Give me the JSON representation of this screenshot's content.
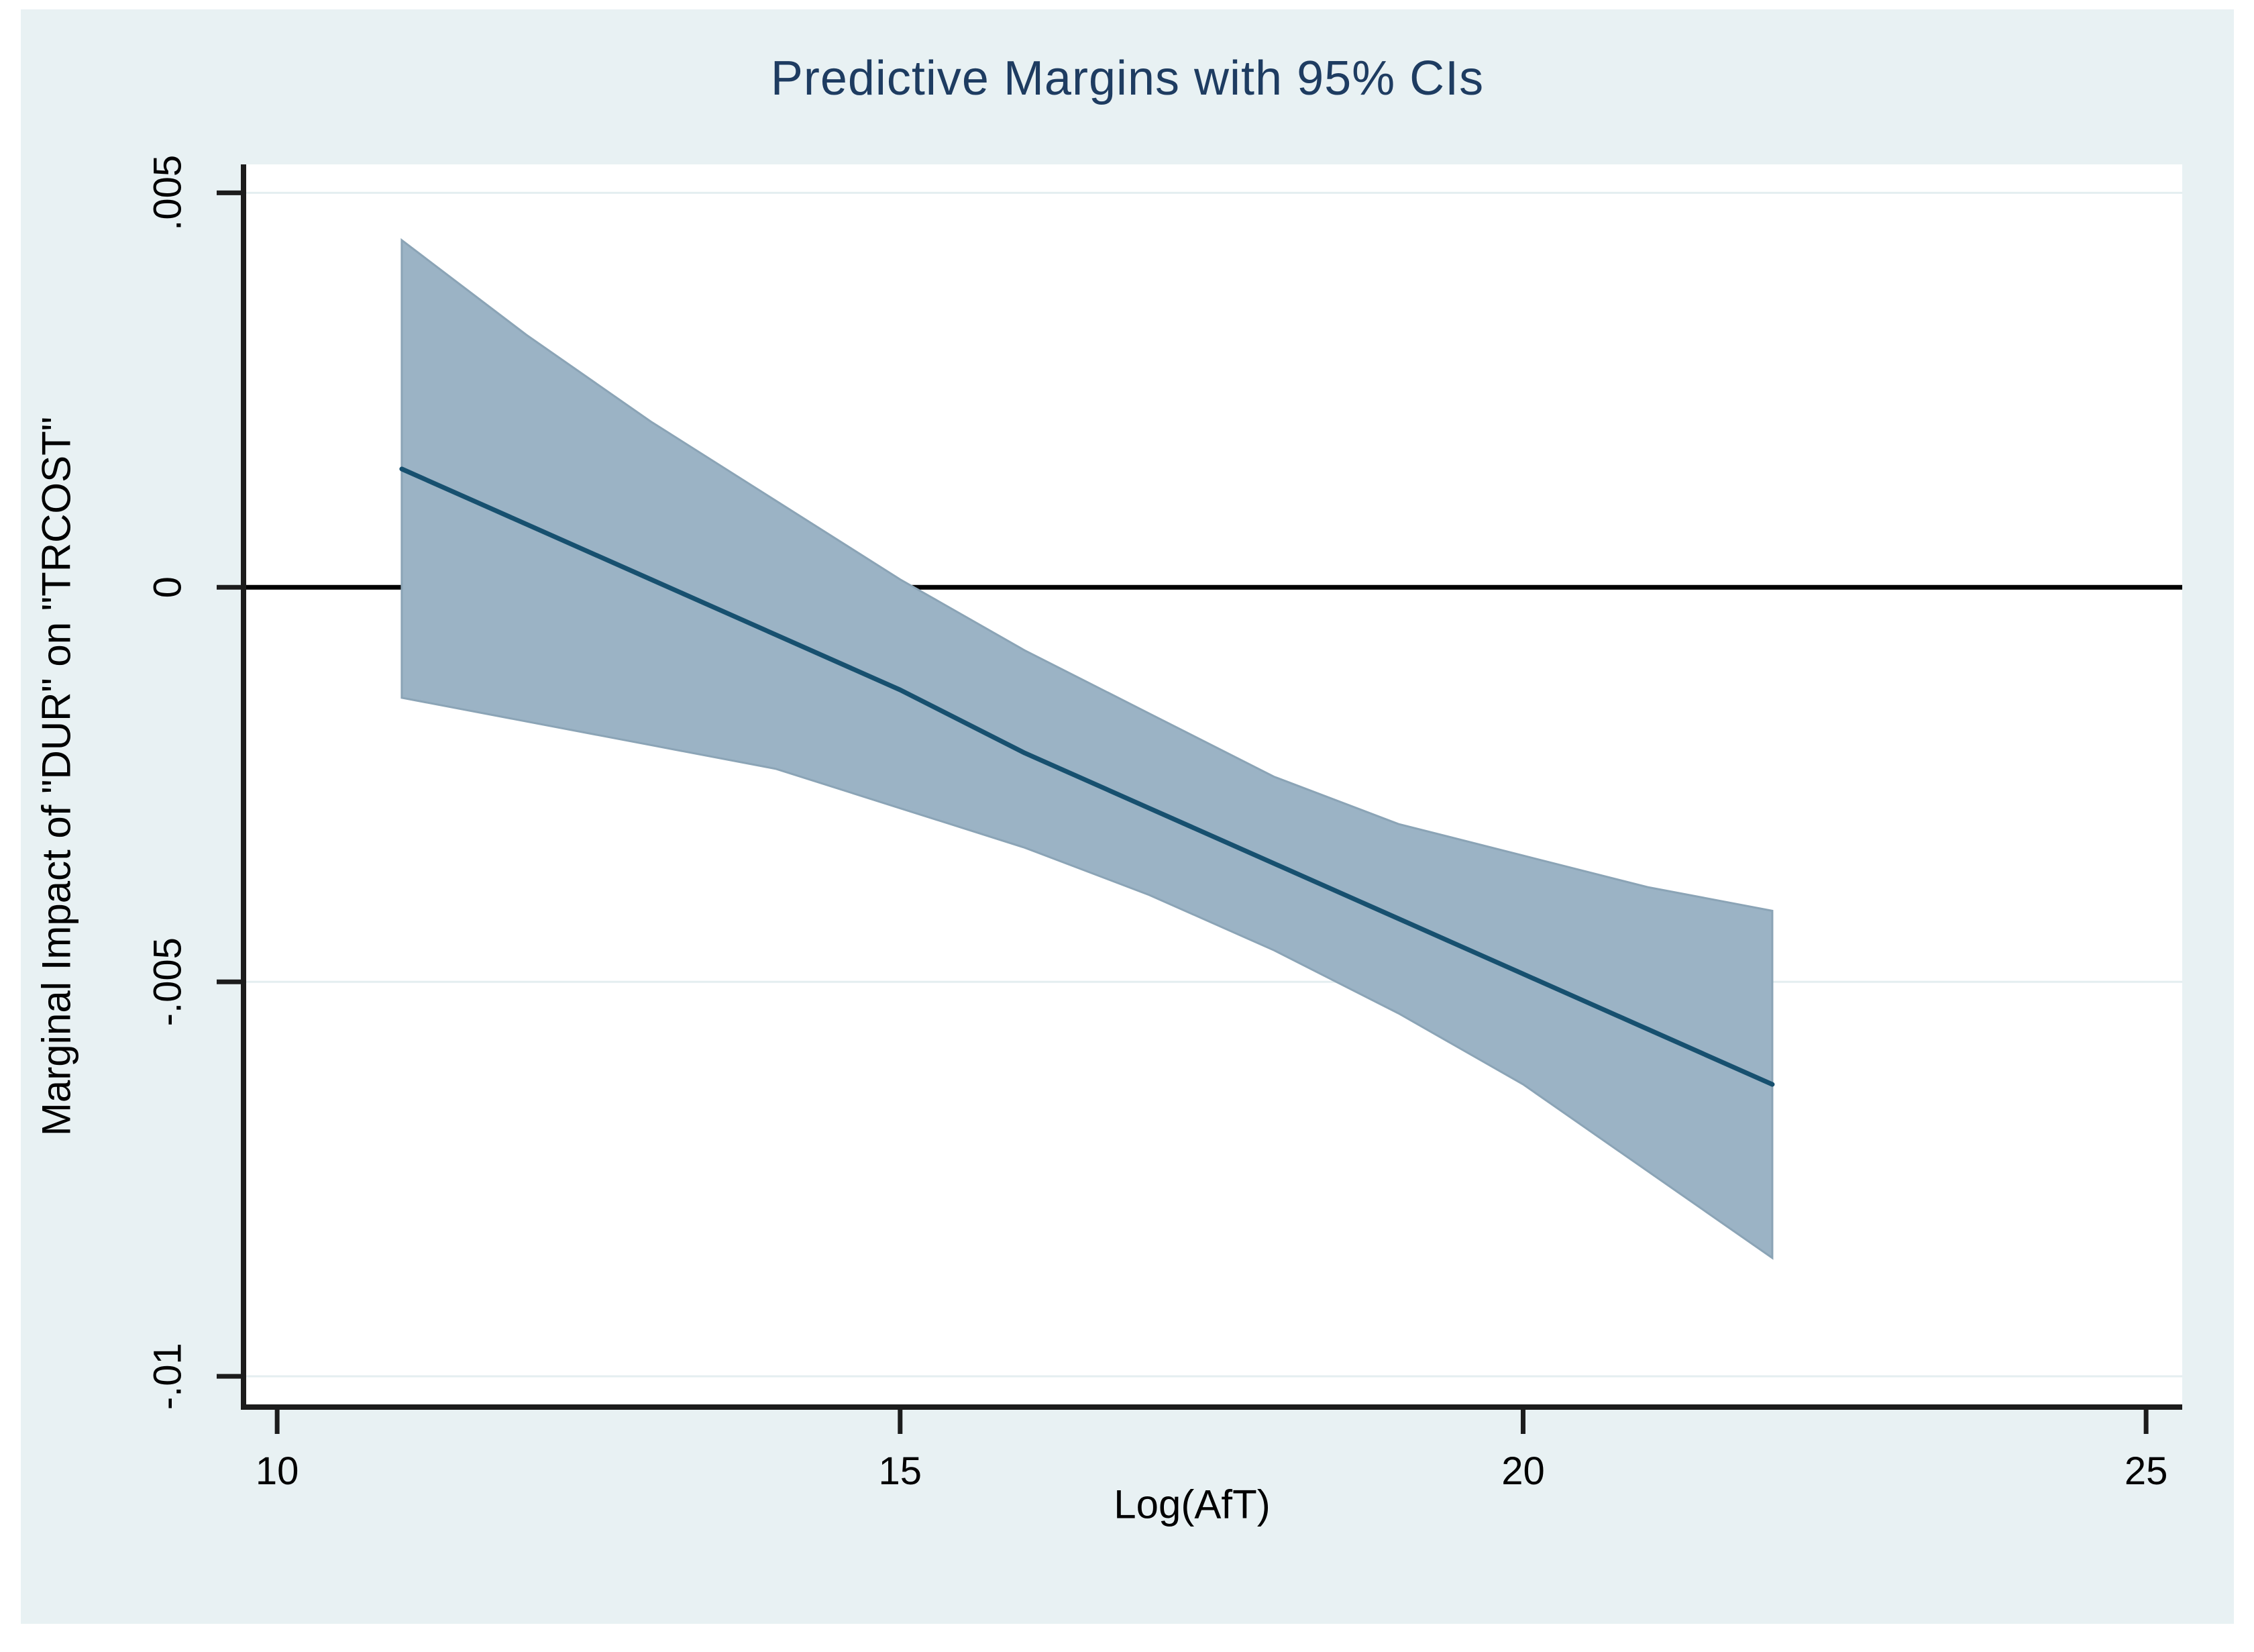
{
  "figure": {
    "title": "Predictive Margins with 95% CIs",
    "x_axis_label": "Log(AfT)",
    "y_axis_label": "Marginal Impact of \"DUR\" on \"TRCOST\""
  },
  "chart_data": {
    "type": "line",
    "title": "Predictive Margins with 95% CIs",
    "xlabel": "Log(AfT)",
    "ylabel": "Marginal Impact of \"DUR\" on \"TRCOST\"",
    "xlim": [
      9.73,
      25.29
    ],
    "ylim": [
      -0.01039,
      0.00536
    ],
    "grid": "horizontal",
    "zero_line": true,
    "legend": "none",
    "x_ticks": [
      {
        "value": 10,
        "label": "10"
      },
      {
        "value": 15,
        "label": "15"
      },
      {
        "value": 20,
        "label": "20"
      },
      {
        "value": 25,
        "label": "25"
      }
    ],
    "y_ticks": [
      {
        "value": 0.005,
        "label": ".005"
      },
      {
        "value": 0,
        "label": "0"
      },
      {
        "value": -0.005,
        "label": "-.005"
      },
      {
        "value": -0.01,
        "label": "-.01"
      }
    ],
    "x": [
      11,
      12,
      13,
      14,
      15,
      16,
      17,
      18,
      19,
      20,
      21,
      22
    ],
    "series": [
      {
        "name": "Predictive margin",
        "style": "line",
        "values": [
          0.0015,
          0.0008,
          0.0001,
          -0.0006,
          -0.0013,
          -0.0021,
          -0.0028,
          -0.0035,
          -0.0042,
          -0.0049,
          -0.0056,
          -0.0063
        ]
      },
      {
        "name": "95% confidence interval",
        "style": "band",
        "upper": [
          0.0044,
          0.0032,
          0.0021,
          0.0011,
          0.0001,
          -0.0008,
          -0.0016,
          -0.0024,
          -0.003,
          -0.0034,
          -0.0038,
          -0.0041
        ],
        "lower": [
          -0.0014,
          -0.0017,
          -0.002,
          -0.0023,
          -0.0028,
          -0.0033,
          -0.0039,
          -0.0046,
          -0.0054,
          -0.0063,
          -0.0074,
          -0.0085
        ]
      }
    ],
    "colors": {
      "figure_background": "#e8f1f3",
      "plot_background": "#ffffff",
      "band_fill": "#9bb3c5",
      "band_edge": "#8ba4b6",
      "mean_line": "#17506f",
      "zero_line": "#000000",
      "gridline": "#e4eef0",
      "axis": "#1c1c1c",
      "title_text": "#1e3c61",
      "label_text": "#000000"
    }
  }
}
